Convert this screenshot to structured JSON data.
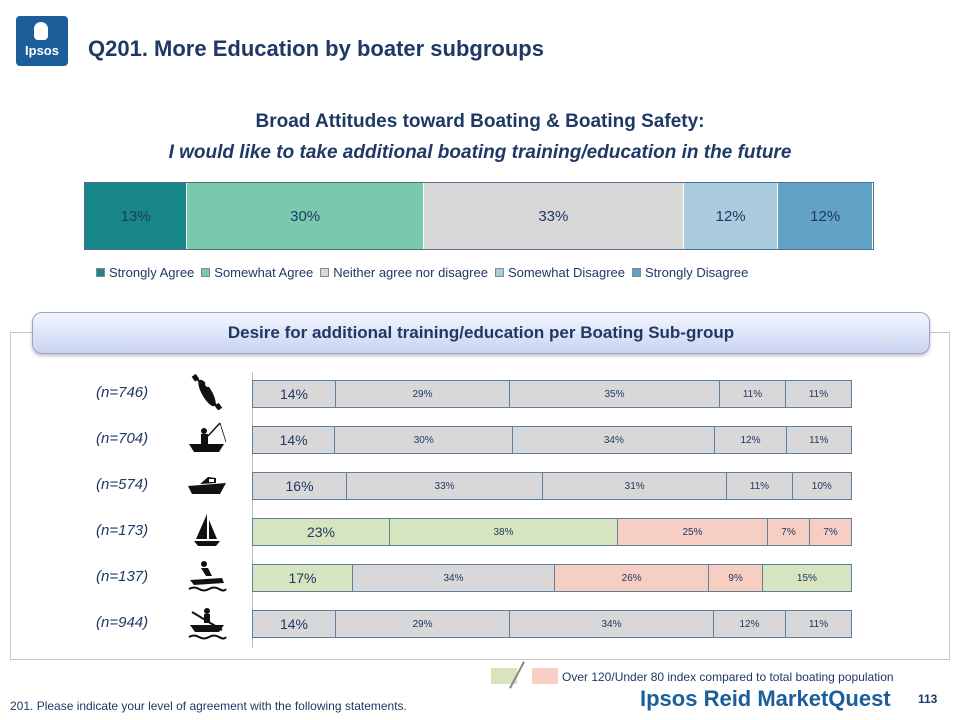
{
  "logo": {
    "text": "Ipsos"
  },
  "page_title": "Q201. More Education by boater subgroups",
  "colors": {
    "strongly_agree": "#17878a",
    "somewhat_agree": "#79c9ad",
    "neither": "#d8d8d8",
    "somewhat_disagree": "#a9cbdc",
    "strongly_disagree": "#62a3c5",
    "over_index": "#d6e4bf",
    "under_index": "#f7cfc2"
  },
  "banner": {
    "label": "Desire for additional  training/education  per Boating Sub-group"
  },
  "index_key": {
    "text": "Over 120/Under 80 index compared to total boating population"
  },
  "footnote": "201. Please indicate your level of agreement with the following statements.",
  "brand": "Ipsos Reid MarketQuest",
  "page_number": "113",
  "chart_data": [
    {
      "type": "bar",
      "orientation": "horizontal",
      "stacked": true,
      "title": "Broad Attitudes toward Boating & Boating Safety:",
      "subtitle": "I would like to take additional boating training/education in the future",
      "categories": [
        ""
      ],
      "legend_position": "bottom",
      "series": [
        {
          "name": "Strongly Agree",
          "values": [
            13
          ],
          "label": "13%"
        },
        {
          "name": "Somewhat Agree",
          "values": [
            30
          ],
          "label": "30%"
        },
        {
          "name": "Neither agree nor disagree",
          "values": [
            33
          ],
          "label": "33%"
        },
        {
          "name": "Somewhat Disagree",
          "values": [
            12
          ],
          "label": "12%"
        },
        {
          "name": "Strongly Disagree",
          "values": [
            12
          ],
          "label": "12%"
        }
      ]
    },
    {
      "type": "bar",
      "orientation": "horizontal",
      "stacked": true,
      "categories": [
        "(n=746)",
        "(n=704)",
        "(n=574)",
        "(n=173)",
        "(n=137)",
        "(n=944)"
      ],
      "row_icons": [
        "kayak-icon",
        "fishing-boat-icon",
        "motorboat-icon",
        "sailboat-icon",
        "jet-ski-icon",
        "rowboat-icon"
      ],
      "rows": [
        {
          "values": [
            14,
            29,
            35,
            11,
            11
          ],
          "labels": [
            "14%",
            "29%",
            "35%",
            "11%",
            "11%"
          ],
          "highlight": [
            "neutral",
            "neutral",
            "neutral",
            "neutral",
            "neutral"
          ]
        },
        {
          "values": [
            14,
            30,
            34,
            12,
            11
          ],
          "labels": [
            "14%",
            "30%",
            "34%",
            "12%",
            "11%"
          ],
          "highlight": [
            "neutral",
            "neutral",
            "neutral",
            "neutral",
            "neutral"
          ]
        },
        {
          "values": [
            16,
            33,
            31,
            11,
            10
          ],
          "labels": [
            "16%",
            "33%",
            "31%",
            "11%",
            "10%"
          ],
          "highlight": [
            "neutral",
            "neutral",
            "neutral",
            "neutral",
            "neutral"
          ]
        },
        {
          "values": [
            23,
            38,
            25,
            7,
            7
          ],
          "labels": [
            "23%",
            "38%",
            "25%",
            "7%",
            "7%"
          ],
          "highlight": [
            "over",
            "over",
            "under",
            "under",
            "under"
          ]
        },
        {
          "values": [
            17,
            34,
            26,
            9,
            15
          ],
          "labels": [
            "17%",
            "34%",
            "26%",
            "9%",
            "15%"
          ],
          "highlight": [
            "over",
            "neutral",
            "under",
            "under",
            "over"
          ]
        },
        {
          "values": [
            14,
            29,
            34,
            12,
            11
          ],
          "labels": [
            "14%",
            "29%",
            "34%",
            "12%",
            "11%"
          ],
          "highlight": [
            "neutral",
            "neutral",
            "neutral",
            "neutral",
            "neutral"
          ]
        }
      ]
    }
  ]
}
